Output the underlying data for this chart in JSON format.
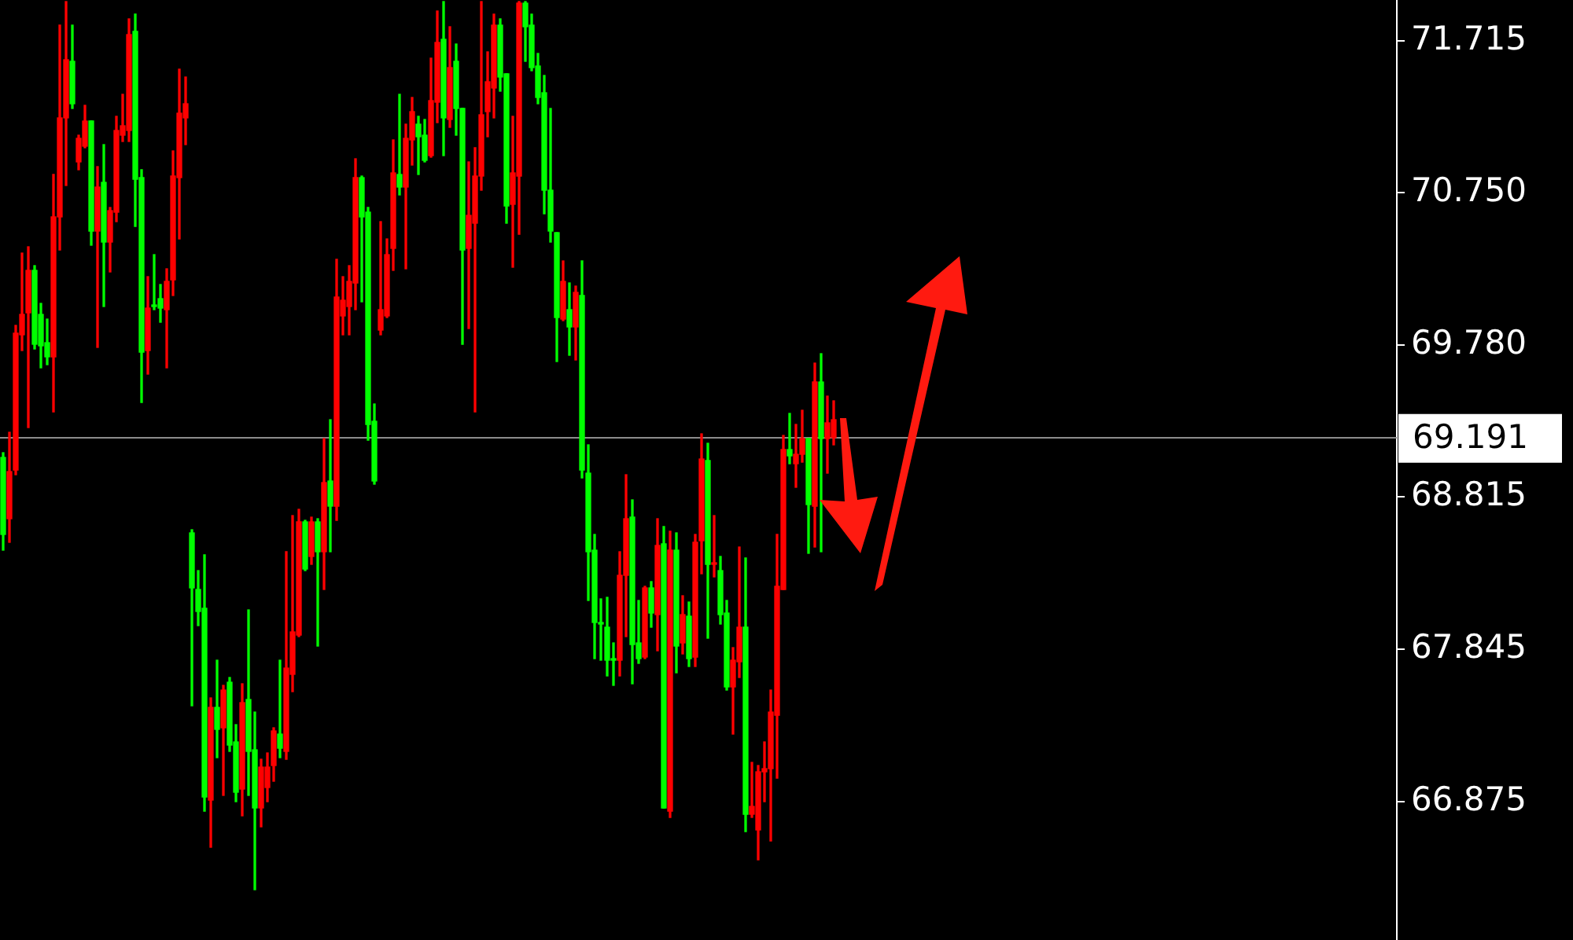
{
  "chart_data": {
    "type": "candlestick",
    "categories": [
      null,
      null,
      null,
      null,
      null,
      null,
      null,
      null,
      null,
      null,
      null,
      null,
      null,
      null,
      null,
      null,
      null,
      null,
      null,
      null,
      null,
      null,
      null,
      null,
      null,
      null,
      null,
      null,
      null,
      null,
      null,
      null,
      null,
      null,
      null,
      null,
      null,
      null,
      null,
      null,
      null,
      null,
      null,
      null,
      null,
      null,
      null,
      null,
      null,
      null,
      null,
      null,
      null,
      null,
      null,
      null,
      null,
      null,
      null,
      null,
      null,
      null,
      null,
      null,
      null,
      null,
      null,
      null,
      null,
      null,
      null,
      null,
      null,
      null,
      null,
      null,
      null,
      null,
      null,
      null,
      null,
      null,
      null,
      null,
      null,
      null,
      null,
      null,
      null,
      null,
      null,
      null,
      null,
      null,
      null,
      null,
      null,
      null,
      null,
      null,
      null,
      null,
      null,
      null,
      null,
      null,
      null,
      null,
      null,
      null,
      null,
      null,
      null,
      null,
      null,
      null,
      null,
      null,
      null,
      null,
      null,
      null,
      null,
      null,
      null,
      null,
      null,
      null,
      null,
      null,
      null,
      null,
      null,
      null,
      null,
      null,
      null,
      null,
      null,
      null,
      null,
      null,
      null,
      null,
      null,
      null,
      null,
      null,
      null,
      null,
      null,
      null,
      null,
      null,
      null,
      null,
      null,
      null,
      null,
      null,
      null,
      null,
      null,
      null,
      null,
      null,
      null,
      null,
      null,
      null,
      null,
      null,
      null,
      null,
      null,
      null,
      null,
      null,
      null,
      null,
      null,
      null,
      null,
      null,
      null,
      null,
      null,
      null,
      null,
      null,
      null,
      null,
      null,
      null,
      null,
      null,
      null,
      null,
      null,
      null,
      null,
      null,
      null,
      null,
      null,
      null,
      null,
      null,
      null,
      null,
      null,
      null,
      null,
      null,
      null,
      null,
      null,
      null,
      null,
      null,
      null,
      null
    ],
    "ohlc": [
      [
        68.575,
        69.095,
        68.475,
        69.065
      ],
      [
        68.975,
        69.225,
        68.525,
        68.675
      ],
      [
        69.855,
        69.905,
        68.955,
        68.985
      ],
      [
        69.975,
        70.365,
        69.745,
        69.845
      ],
      [
        70.255,
        70.405,
        69.255,
        69.985
      ],
      [
        69.785,
        70.285,
        69.755,
        70.255
      ],
      [
        69.775,
        70.045,
        69.635,
        69.975
      ],
      [
        69.705,
        69.945,
        69.655,
        69.795
      ],
      [
        70.595,
        70.865,
        69.355,
        69.705
      ],
      [
        71.225,
        71.815,
        70.385,
        70.595
      ],
      [
        71.595,
        71.965,
        70.795,
        71.225
      ],
      [
        71.315,
        71.815,
        71.285,
        71.585
      ],
      [
        71.095,
        71.115,
        70.895,
        70.945
      ],
      [
        71.205,
        71.305,
        71.035,
        71.045
      ],
      [
        70.505,
        71.205,
        70.415,
        71.205
      ],
      [
        70.785,
        70.915,
        69.765,
        70.505
      ],
      [
        70.435,
        71.055,
        70.025,
        70.815
      ],
      [
        70.635,
        70.655,
        70.245,
        70.435
      ],
      [
        71.145,
        71.235,
        70.565,
        70.625
      ],
      [
        71.175,
        71.375,
        71.075,
        71.115
      ],
      [
        71.755,
        71.855,
        71.075,
        71.145
      ],
      [
        70.835,
        71.885,
        70.535,
        71.775
      ],
      [
        69.735,
        70.895,
        69.415,
        70.845
      ],
      [
        70.015,
        70.215,
        69.595,
        69.745
      ],
      [
        70.025,
        70.355,
        70.005,
        70.035
      ],
      [
        70.015,
        70.165,
        69.925,
        70.075
      ],
      [
        70.185,
        70.265,
        69.635,
        70.005
      ],
      [
        70.855,
        71.015,
        70.095,
        70.195
      ],
      [
        71.255,
        71.535,
        70.455,
        70.845
      ],
      [
        71.315,
        71.485,
        71.055,
        71.225
      ],
      [
        68.235,
        68.605,
        67.485,
        68.585
      ],
      [
        68.085,
        68.345,
        67.995,
        68.225
      ],
      [
        66.905,
        68.445,
        66.815,
        68.105
      ],
      [
        67.475,
        67.535,
        66.585,
        66.885
      ],
      [
        67.335,
        67.775,
        67.155,
        67.475
      ],
      [
        67.585,
        67.615,
        66.915,
        67.345
      ],
      [
        67.235,
        67.665,
        67.195,
        67.635
      ],
      [
        66.935,
        67.365,
        66.875,
        67.255
      ],
      [
        67.505,
        67.625,
        66.785,
        66.955
      ],
      [
        67.195,
        68.095,
        66.915,
        67.525
      ],
      [
        66.835,
        67.445,
        66.315,
        67.205
      ],
      [
        67.095,
        67.145,
        66.715,
        66.835
      ],
      [
        67.095,
        67.185,
        66.875,
        66.965
      ],
      [
        67.325,
        67.345,
        67.005,
        67.105
      ],
      [
        67.215,
        67.775,
        67.155,
        67.305
      ],
      [
        67.725,
        68.465,
        67.145,
        67.195
      ],
      [
        67.955,
        68.695,
        67.575,
        67.685
      ],
      [
        68.655,
        68.735,
        67.925,
        67.935
      ],
      [
        68.355,
        68.665,
        68.345,
        68.655
      ],
      [
        68.655,
        68.685,
        68.385,
        68.435
      ],
      [
        68.465,
        68.675,
        67.865,
        68.655
      ],
      [
        68.905,
        69.185,
        68.225,
        68.465
      ],
      [
        68.755,
        69.305,
        68.465,
        68.915
      ],
      [
        70.085,
        70.325,
        68.665,
        68.755
      ],
      [
        70.065,
        70.215,
        69.845,
        69.965
      ],
      [
        70.185,
        70.285,
        69.845,
        70.025
      ],
      [
        70.845,
        70.965,
        70.005,
        70.175
      ],
      [
        70.595,
        70.855,
        70.055,
        70.845
      ],
      [
        69.275,
        70.655,
        69.175,
        70.625
      ],
      [
        68.915,
        69.405,
        68.895,
        69.295
      ],
      [
        70.005,
        70.565,
        69.845,
        69.875
      ],
      [
        70.355,
        70.455,
        69.955,
        69.965
      ],
      [
        70.875,
        71.085,
        70.255,
        70.395
      ],
      [
        70.785,
        71.375,
        70.735,
        70.865
      ],
      [
        71.095,
        71.185,
        70.265,
        70.785
      ],
      [
        71.265,
        71.355,
        70.925,
        71.085
      ],
      [
        71.105,
        71.235,
        70.865,
        71.185
      ],
      [
        70.955,
        71.215,
        70.945,
        71.115
      ],
      [
        71.335,
        71.605,
        70.975,
        70.985
      ],
      [
        71.705,
        71.905,
        71.195,
        71.325
      ],
      [
        71.225,
        71.965,
        70.985,
        71.725
      ],
      [
        71.545,
        71.805,
        71.165,
        71.215
      ],
      [
        71.285,
        71.695,
        71.115,
        71.585
      ],
      [
        70.385,
        71.285,
        69.785,
        71.285
      ],
      [
        70.605,
        70.945,
        69.885,
        70.395
      ],
      [
        70.855,
        71.035,
        69.355,
        70.555
      ],
      [
        71.245,
        71.965,
        70.765,
        70.855
      ],
      [
        71.455,
        71.645,
        71.105,
        71.265
      ],
      [
        71.815,
        71.885,
        71.225,
        71.415
      ],
      [
        71.485,
        71.855,
        71.395,
        71.815
      ],
      [
        70.665,
        71.505,
        70.555,
        71.505
      ],
      [
        70.875,
        71.235,
        70.275,
        70.675
      ],
      [
        71.955,
        71.965,
        70.485,
        70.855
      ],
      [
        71.805,
        71.965,
        71.585,
        71.955
      ],
      [
        71.545,
        71.885,
        71.525,
        71.815
      ],
      [
        71.355,
        71.635,
        71.315,
        71.555
      ],
      [
        70.765,
        71.495,
        70.615,
        71.385
      ],
      [
        70.505,
        71.285,
        70.435,
        70.765
      ],
      [
        69.955,
        70.495,
        69.675,
        70.495
      ],
      [
        70.185,
        70.315,
        69.935,
        69.945
      ],
      [
        69.895,
        70.175,
        69.715,
        70.005
      ],
      [
        70.115,
        70.155,
        69.685,
        69.895
      ],
      [
        68.985,
        70.315,
        68.935,
        70.095
      ],
      [
        68.465,
        69.145,
        68.155,
        68.965
      ],
      [
        68.015,
        68.575,
        67.785,
        68.475
      ],
      [
        68.005,
        68.165,
        67.775,
        68.015
      ],
      [
        67.775,
        68.175,
        67.675,
        67.985
      ],
      [
        67.775,
        67.885,
        67.615,
        67.785
      ],
      [
        68.315,
        68.465,
        67.675,
        67.775
      ],
      [
        68.675,
        68.955,
        67.925,
        68.315
      ],
      [
        67.875,
        68.795,
        67.625,
        68.685
      ],
      [
        67.785,
        68.155,
        67.755,
        67.885
      ],
      [
        68.235,
        68.245,
        67.785,
        67.795
      ],
      [
        68.075,
        68.275,
        67.985,
        68.235
      ],
      [
        68.505,
        68.675,
        67.835,
        68.065
      ],
      [
        66.835,
        68.625,
        66.835,
        68.515
      ],
      [
        68.475,
        68.595,
        66.775,
        66.815
      ],
      [
        67.865,
        68.585,
        67.695,
        68.475
      ],
      [
        68.065,
        68.185,
        67.815,
        67.885
      ],
      [
        67.785,
        68.145,
        67.735,
        68.055
      ],
      [
        68.525,
        68.575,
        67.735,
        67.795
      ],
      [
        69.055,
        69.215,
        68.325,
        68.535
      ],
      [
        68.385,
        69.155,
        67.915,
        69.045
      ],
      [
        68.395,
        68.695,
        68.305,
        68.385
      ],
      [
        68.065,
        68.435,
        68.005,
        68.345
      ],
      [
        67.605,
        68.155,
        67.585,
        68.075
      ],
      [
        67.775,
        67.855,
        67.305,
        67.605
      ],
      [
        67.985,
        68.495,
        67.665,
        67.765
      ],
      [
        66.795,
        68.425,
        66.685,
        67.985
      ],
      [
        66.845,
        67.125,
        66.775,
        66.795
      ],
      [
        67.065,
        67.105,
        66.505,
        66.695
      ],
      [
        67.085,
        67.255,
        66.875,
        67.065
      ],
      [
        67.445,
        67.585,
        66.625,
        67.085
      ],
      [
        68.245,
        68.575,
        67.025,
        67.425
      ],
      [
        69.115,
        69.205,
        68.225,
        68.225
      ],
      [
        69.075,
        69.345,
        69.025,
        69.115
      ],
      [
        69.085,
        69.275,
        68.875,
        69.025
      ],
      [
        69.185,
        69.365,
        69.035,
        69.085
      ],
      [
        68.765,
        69.185,
        68.455,
        69.185
      ],
      [
        69.545,
        69.665,
        68.495,
        68.755
      ],
      [
        69.185,
        69.725,
        68.465,
        69.545
      ],
      [
        69.285,
        69.455,
        68.965,
        69.185
      ],
      [
        69.305,
        69.425,
        69.145,
        69.191
      ],
      null,
      null,
      null,
      null,
      null,
      null,
      null,
      null,
      null,
      null,
      null,
      null,
      null,
      null,
      null,
      null,
      null,
      null,
      null,
      null,
      null,
      null,
      null,
      null,
      null,
      null,
      null,
      null,
      null,
      null,
      null,
      null,
      null,
      null,
      null,
      null,
      null,
      null,
      null,
      null,
      null,
      null,
      null,
      null,
      null,
      null,
      null,
      null,
      null,
      null,
      null,
      null,
      null,
      null,
      null,
      null,
      null,
      null,
      null,
      null,
      null,
      null,
      null,
      null,
      null,
      null,
      null,
      null,
      null,
      null,
      null,
      null,
      null,
      null,
      null,
      null,
      null,
      null,
      null,
      null,
      null,
      null,
      null,
      null,
      null,
      null,
      null,
      null,
      null
    ],
    "colors": [
      "#00ff00",
      "#ff0000",
      "#ff0000",
      "#ff0000",
      "#ff0000",
      "#00ff00",
      "#00ff00",
      "#00ff00",
      "#ff0000",
      "#ff0000",
      "#ff0000",
      "#00ff00",
      "#ff0000",
      "#ff0000",
      "#00ff00",
      "#ff0000",
      "#00ff00",
      "#ff0000",
      "#ff0000",
      "#ff0000",
      "#ff0000",
      "#00ff00",
      "#00ff00",
      "#ff0000",
      "#00ff00",
      "#00ff00",
      "#ff0000",
      "#ff0000",
      "#ff0000",
      "#ff0000",
      "#00ff00",
      "#00ff00",
      "#00ff00",
      "#ff0000",
      "#00ff00",
      "#ff0000",
      "#00ff00",
      "#00ff00",
      "#ff0000",
      "#00ff00",
      "#00ff00",
      "#ff0000",
      "#ff0000",
      "#ff0000",
      "#00ff00",
      "#ff0000",
      "#ff0000",
      "#ff0000",
      "#00ff00",
      "#ff0000",
      "#00ff00",
      "#ff0000",
      "#00ff00",
      "#ff0000",
      "#ff0000",
      "#ff0000",
      "#ff0000",
      "#00ff00",
      "#00ff00",
      "#00ff00",
      "#ff0000",
      "#ff0000",
      "#ff0000",
      "#00ff00",
      "#ff0000",
      "#ff0000",
      "#00ff00",
      "#00ff00",
      "#ff0000",
      "#ff0000",
      "#00ff00",
      "#ff0000",
      "#00ff00",
      "#00ff00",
      "#ff0000",
      "#ff0000",
      "#ff0000",
      "#ff0000",
      "#ff0000",
      "#00ff00",
      "#00ff00",
      "#ff0000",
      "#ff0000",
      "#00ff00",
      "#00ff00",
      "#00ff00",
      "#00ff00",
      "#00ff00",
      "#00ff00",
      "#ff0000",
      "#00ff00",
      "#ff0000",
      "#00ff00",
      "#00ff00",
      "#00ff00",
      "#00ff00",
      "#00ff00",
      "#00ff00",
      "#ff0000",
      "#ff0000",
      "#00ff00",
      "#00ff00",
      "#ff0000",
      "#00ff00",
      "#ff0000",
      "#00ff00",
      "#ff0000",
      "#00ff00",
      "#ff0000",
      "#00ff00",
      "#ff0000",
      "#ff0000",
      "#00ff00",
      "#ff0000",
      "#00ff00",
      "#00ff00",
      "#ff0000",
      "#ff0000",
      "#00ff00",
      "#ff0000",
      "#ff0000",
      "#ff0000",
      "#ff0000",
      "#ff0000",
      "#ff0000",
      "#00ff00",
      "#ff0000",
      "#ff0000",
      "#00ff00",
      "#ff0000",
      "#00ff00",
      "#ff0000",
      "#ff0000",
      null,
      null,
      null,
      null,
      null,
      null,
      null,
      null,
      null,
      null,
      null,
      null,
      null,
      null,
      null,
      null,
      null,
      null,
      null,
      null,
      null,
      null,
      null,
      null,
      null,
      null,
      null,
      null,
      null,
      null,
      null,
      null,
      null,
      null,
      null,
      null,
      null,
      null,
      null,
      null,
      null,
      null,
      null,
      null,
      null,
      null,
      null,
      null,
      null,
      null,
      null,
      null,
      null,
      null,
      null,
      null,
      null,
      null,
      null,
      null,
      null,
      null,
      null,
      null,
      null,
      null,
      null,
      null,
      null,
      null,
      null,
      null,
      null,
      null,
      null,
      null,
      null,
      null,
      null,
      null,
      null,
      null,
      null,
      null,
      null,
      null,
      null,
      null,
      null
    ],
    "ylim": [
      65.995,
      71.975
    ],
    "yticks": [
      {
        "value": 71.715,
        "label": "71.715"
      },
      {
        "value": 70.75,
        "label": "70.750"
      },
      {
        "value": 69.78,
        "label": "69.780"
      },
      {
        "value": 68.815,
        "label": "68.815"
      },
      {
        "value": 67.845,
        "label": "67.845"
      },
      {
        "value": 66.875,
        "label": "66.875"
      }
    ],
    "ref_lines": [
      {
        "axis": "y",
        "value": 69.191,
        "label": "69.191",
        "color": "#8c8c8c"
      }
    ],
    "tick_labels": "y"
  }
}
